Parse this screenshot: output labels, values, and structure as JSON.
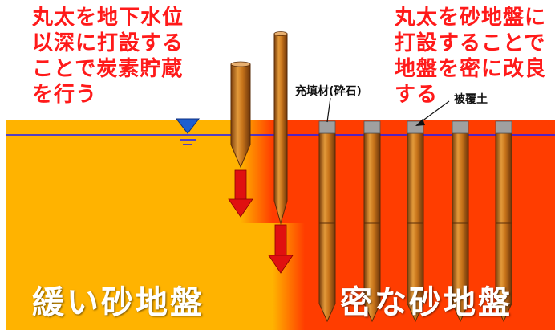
{
  "captions": {
    "left": "丸太を地下水位\n以深に打設する\nことで炭素貯蔵\nを行う",
    "right": "丸太を砂地盤に\n打設することで\n地盤を密に改良\nする"
  },
  "labels": {
    "fill_material": "充填材(砕石)",
    "cover_soil": "被覆土"
  },
  "zones": {
    "loose": "緩い砂地盤",
    "dense": "密な砂地盤"
  },
  "colors": {
    "loose_sand": "#ffb300",
    "dense_sand": "#ff3d00",
    "caption_text": "#ff1a1a",
    "water_line": "#1a1aff",
    "arrow": "#e01010",
    "log": "#c8741a",
    "cap": "#a0a0a0"
  },
  "icons": {
    "water_level": "inverted-triangle-water-mark"
  }
}
